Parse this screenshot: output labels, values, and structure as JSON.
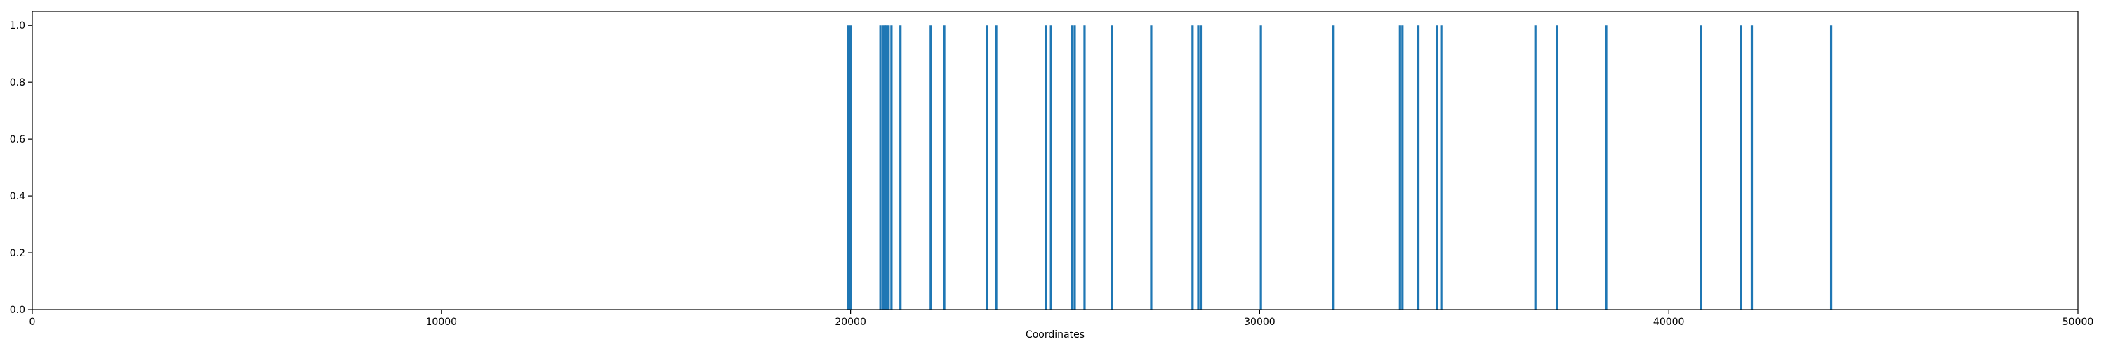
{
  "chart_data": {
    "type": "bar",
    "xlabel": "Coordinates",
    "ylabel": "",
    "xlim": [
      0,
      50000
    ],
    "ylim": [
      0,
      1.05
    ],
    "grid": false,
    "bar_color": "#1f77b4",
    "x_ticks": [
      {
        "value": 0,
        "label": "0"
      },
      {
        "value": 10000,
        "label": "10000"
      },
      {
        "value": 20000,
        "label": "20000"
      },
      {
        "value": 30000,
        "label": "30000"
      },
      {
        "value": 40000,
        "label": "40000"
      },
      {
        "value": 50000,
        "label": "50000"
      }
    ],
    "y_ticks": [
      {
        "value": 0.0,
        "label": "0.0"
      },
      {
        "value": 0.2,
        "label": "0.2"
      },
      {
        "value": 0.4,
        "label": "0.4"
      },
      {
        "value": 0.6,
        "label": "0.6"
      },
      {
        "value": 0.8,
        "label": "0.8"
      },
      {
        "value": 1.0,
        "label": "1.0"
      }
    ],
    "x": [
      19940,
      20000,
      20730,
      20790,
      20840,
      20880,
      20930,
      21000,
      21220,
      21960,
      22290,
      23340,
      23560,
      24780,
      24900,
      25420,
      25480,
      25720,
      26390,
      27350,
      28360,
      28500,
      28560,
      30030,
      31790,
      33430,
      33490,
      33880,
      34340,
      34440,
      36740,
      37270,
      38470,
      40780,
      41760,
      42030,
      43970
    ],
    "values": [
      1,
      1,
      1,
      1,
      1,
      1,
      1,
      1,
      1,
      1,
      1,
      1,
      1,
      1,
      1,
      1,
      1,
      1,
      1,
      1,
      1,
      1,
      1,
      1,
      1,
      1,
      1,
      1,
      1,
      1,
      1,
      1,
      1,
      1,
      1,
      1,
      1
    ]
  }
}
